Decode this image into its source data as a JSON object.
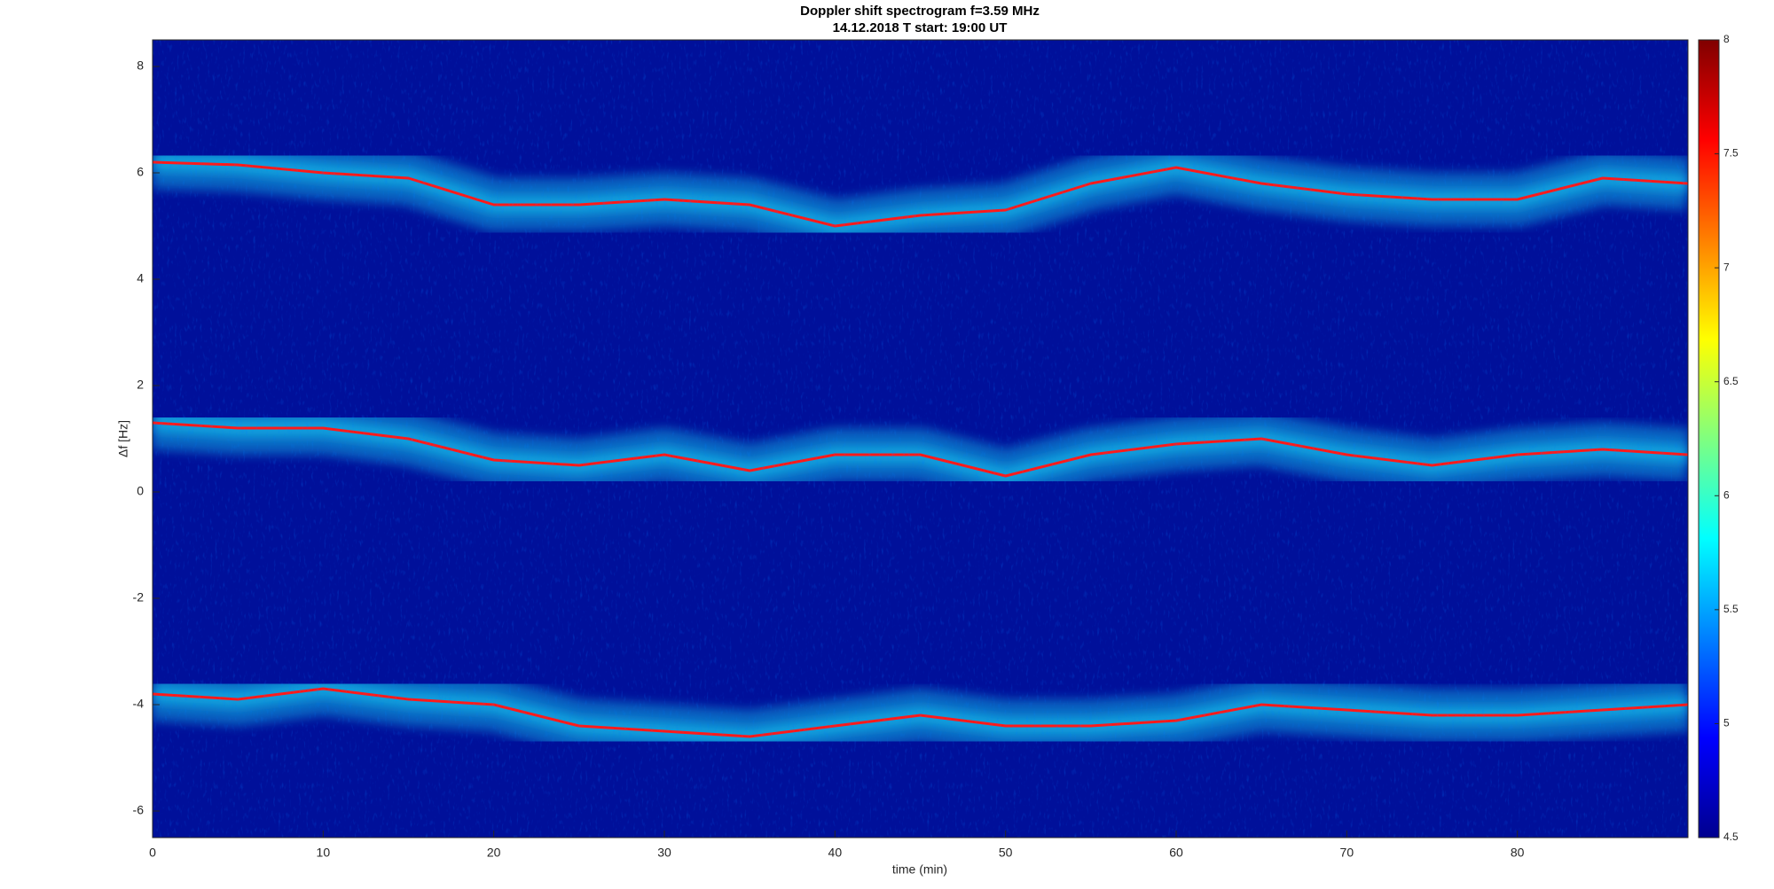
{
  "chart_data": {
    "type": "spectrogram",
    "title": "Doppler shift spectrogram f=3.59 MHz",
    "subtitle": "14.12.2018   T start: 19:00 UT",
    "xlabel": "time (min)",
    "ylabel": "Δf [Hz]",
    "x": [
      0,
      5,
      10,
      15,
      20,
      25,
      30,
      35,
      40,
      45,
      50,
      55,
      60,
      65,
      70,
      75,
      80,
      85,
      90
    ],
    "series": [
      {
        "values": [
          6.2,
          6.15,
          6.0,
          5.9,
          5.4,
          5.4,
          5.5,
          5.4,
          5.0,
          5.2,
          5.3,
          5.8,
          6.1,
          5.8,
          5.6,
          5.5,
          5.5,
          5.9,
          5.8
        ]
      },
      {
        "values": [
          1.3,
          1.2,
          1.2,
          1.0,
          0.6,
          0.5,
          0.7,
          0.4,
          0.7,
          0.7,
          0.3,
          0.7,
          0.9,
          1.0,
          0.7,
          0.5,
          0.7,
          0.8,
          0.7
        ]
      },
      {
        "values": [
          -3.8,
          -3.9,
          -3.7,
          -3.9,
          -4.0,
          -4.4,
          -4.5,
          -4.6,
          -4.4,
          -4.2,
          -4.4,
          -4.4,
          -4.3,
          -4.0,
          -4.1,
          -4.2,
          -4.2,
          -4.1,
          -4.0
        ]
      }
    ],
    "xlim": [
      0,
      90
    ],
    "xticks": [
      0,
      10,
      20,
      30,
      40,
      50,
      60,
      70,
      80
    ],
    "ylim": [
      -6.5,
      8.5
    ],
    "yticks": [
      -6,
      -4,
      -2,
      0,
      2,
      4,
      6,
      8
    ],
    "clim": [
      4.5,
      8
    ],
    "cticks": [
      4.5,
      5,
      5.5,
      6,
      6.5,
      7,
      7.5,
      8
    ],
    "background_color": "#00109a",
    "halo_color": "#19c8f0",
    "ridge_color": "#ff1a1a"
  }
}
